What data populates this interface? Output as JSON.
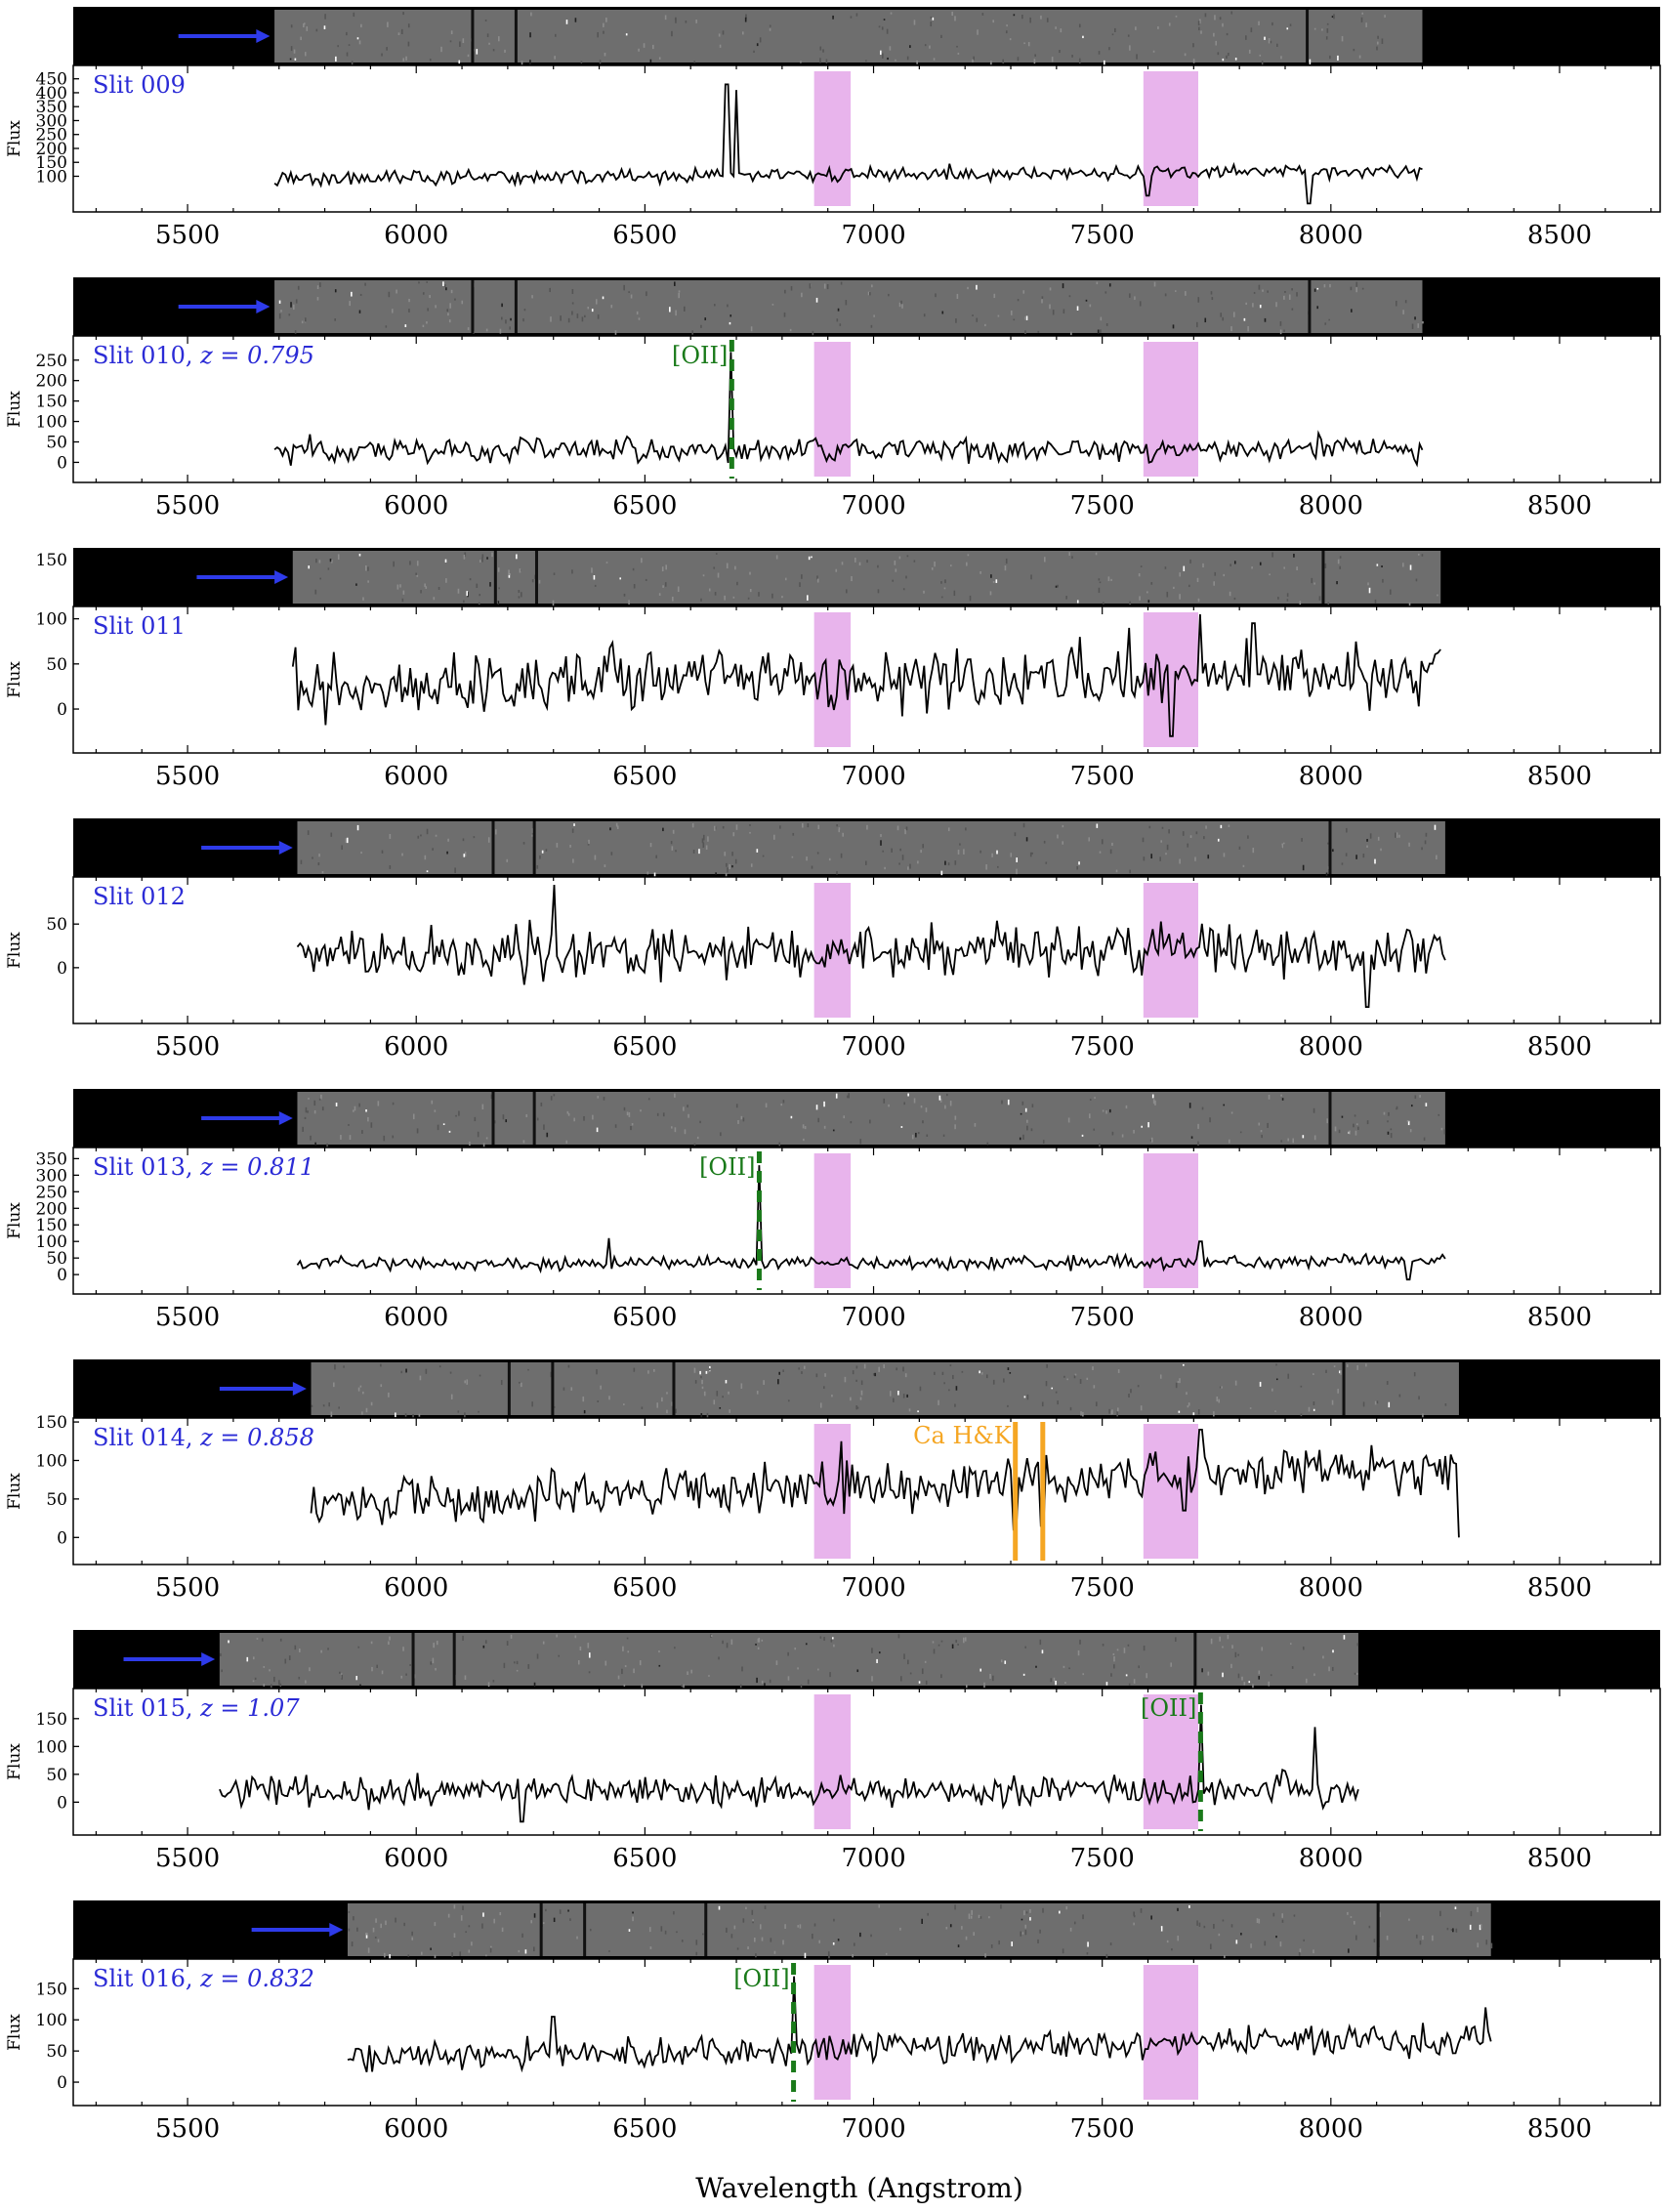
{
  "figure": {
    "xlabel": "Wavelength (Angstrom)",
    "ylabel": "Flux",
    "x_ticks": [
      5500,
      6000,
      6500,
      7000,
      7500,
      8000,
      8500
    ],
    "xlim": [
      5250,
      8720
    ],
    "telluric_bands": [
      [
        6870,
        6950
      ],
      [
        7590,
        7710
      ]
    ],
    "colors": {
      "slit_label": "#2b2bd6",
      "arrow": "#2e3bea",
      "telluric": "#e8b4ec",
      "oii": "#1a7a1a",
      "cahk": "#f5a623",
      "spectrum": "#000000",
      "image_bg": "#000000",
      "image_strip": "#6e6e6e"
    }
  },
  "chart_data": [
    {
      "type": "line",
      "label": "Slit 009",
      "ylim": [
        0,
        470
      ],
      "y_ticks": [
        100,
        150,
        200,
        250,
        300,
        350,
        400,
        450
      ],
      "log_style": true,
      "range": [
        5690,
        8200
      ],
      "base": 90,
      "noise": 20,
      "trend": 30,
      "strip": [
        5690,
        8200
      ],
      "arrow": [
        5480,
        5680
      ],
      "strip_gaps": [
        6120,
        6215,
        7945
      ],
      "spikes": [
        [
          6680,
          430
        ],
        [
          6700,
          410
        ]
      ],
      "dips": [
        [
          7950,
          0
        ],
        [
          7600,
          30
        ]
      ],
      "oii": null,
      "cahk": null
    },
    {
      "type": "line",
      "label": "Slit 010, ",
      "z_label": "z = 0.795",
      "ylim": [
        -30,
        290
      ],
      "y_ticks": [
        0,
        50,
        100,
        150,
        200,
        250
      ],
      "range": [
        5690,
        8200
      ],
      "base": 30,
      "noise": 22,
      "trend": 0,
      "strip": [
        5690,
        8200
      ],
      "arrow": [
        5480,
        5680
      ],
      "strip_gaps": [
        6120,
        6215,
        7950
      ],
      "spikes": [
        [
          6690,
          270
        ]
      ],
      "dips": [],
      "oii": {
        "x": 6690,
        "label": "[OII]"
      },
      "cahk": null
    },
    {
      "type": "line",
      "label": "Slit 011",
      "ylim": [
        -40,
        105
      ],
      "y_ticks": [
        0,
        50,
        100
      ],
      "extra_ticks_above": [
        150
      ],
      "range": [
        5730,
        8240
      ],
      "base": 25,
      "noise": 25,
      "trend": 15,
      "strip": [
        5730,
        8240
      ],
      "arrow": [
        5520,
        5720
      ],
      "strip_gaps": [
        6170,
        6260,
        7980
      ],
      "spikes": [
        [
          7715,
          105
        ],
        [
          7830,
          95
        ],
        [
          7560,
          90
        ]
      ],
      "dips": [
        [
          7650,
          -30
        ]
      ],
      "oii": null,
      "cahk": null
    },
    {
      "type": "line",
      "label": "Slit 012",
      "ylim": [
        -55,
        95
      ],
      "y_ticks": [
        0,
        50
      ],
      "range": [
        5740,
        8250
      ],
      "base": 15,
      "noise": 22,
      "trend": 5,
      "strip": [
        5740,
        8250
      ],
      "arrow": [
        5530,
        5730
      ],
      "strip_gaps": [
        6165,
        6255,
        7995
      ],
      "spikes": [
        [
          6300,
          95
        ]
      ],
      "dips": [
        [
          8080,
          -45
        ]
      ],
      "oii": null,
      "cahk": null
    },
    {
      "type": "line",
      "label": "Slit 013, ",
      "z_label": "z = 0.811",
      "ylim": [
        -35,
        360
      ],
      "y_ticks": [
        0,
        50,
        100,
        150,
        200,
        250,
        300,
        350
      ],
      "range": [
        5740,
        8250
      ],
      "base": 30,
      "noise": 15,
      "trend": 10,
      "strip": [
        5740,
        8250
      ],
      "arrow": [
        5530,
        5730
      ],
      "strip_gaps": [
        6165,
        6255,
        7995
      ],
      "spikes": [
        [
          6750,
          330
        ],
        [
          6420,
          110
        ],
        [
          7715,
          100
        ]
      ],
      "dips": [
        [
          8170,
          -15
        ]
      ],
      "oii": {
        "x": 6750,
        "label": "[OII]"
      },
      "cahk": null
    },
    {
      "type": "line",
      "label": "Slit 014, ",
      "z_label": "z = 0.858",
      "ylim": [
        -25,
        145
      ],
      "y_ticks": [
        0,
        50,
        100,
        150
      ],
      "range": [
        5770,
        8280
      ],
      "base": 45,
      "noise": 24,
      "trend": 45,
      "strip": [
        5770,
        8280
      ],
      "arrow": [
        5570,
        5760
      ],
      "strip_gaps": [
        6200,
        6295,
        6560,
        8025
      ],
      "spikes": [
        [
          7715,
          140
        ],
        [
          6930,
          125
        ]
      ],
      "dips": [
        [
          7310,
          10
        ],
        [
          7370,
          15
        ],
        [
          7680,
          35
        ],
        [
          8280,
          0
        ]
      ],
      "oii": null,
      "cahk": {
        "x": [
          7310,
          7370
        ],
        "label": "Ca H&K"
      }
    },
    {
      "type": "line",
      "label": "Slit 015, ",
      "z_label": "z = 1.07",
      "ylim": [
        -45,
        190
      ],
      "y_ticks": [
        0,
        50,
        100,
        150
      ],
      "range": [
        5570,
        8060
      ],
      "base": 18,
      "noise": 20,
      "trend": 5,
      "strip": [
        5570,
        8060
      ],
      "arrow": [
        5360,
        5560
      ],
      "strip_gaps": [
        5990,
        6080,
        7700
      ],
      "spikes": [
        [
          7715,
          175
        ],
        [
          7965,
          135
        ]
      ],
      "dips": [
        [
          6230,
          -35
        ]
      ],
      "oii": {
        "x": 7715,
        "label": "[OII]"
      },
      "cahk": null
    },
    {
      "type": "line",
      "label": "Slit 016, ",
      "z_label": "z = 0.832",
      "ylim": [
        -25,
        185
      ],
      "y_ticks": [
        0,
        50,
        100,
        150
      ],
      "range": [
        5850,
        8350
      ],
      "base": 40,
      "noise": 18,
      "trend": 30,
      "strip": [
        5850,
        8350
      ],
      "arrow": [
        5640,
        5840
      ],
      "strip_gaps": [
        6270,
        6365,
        6630,
        8100
      ],
      "spikes": [
        [
          6825,
          170
        ],
        [
          8340,
          120
        ],
        [
          6300,
          105
        ]
      ],
      "dips": [],
      "oii": {
        "x": 6825,
        "label": "[OII]"
      },
      "cahk": null
    }
  ]
}
